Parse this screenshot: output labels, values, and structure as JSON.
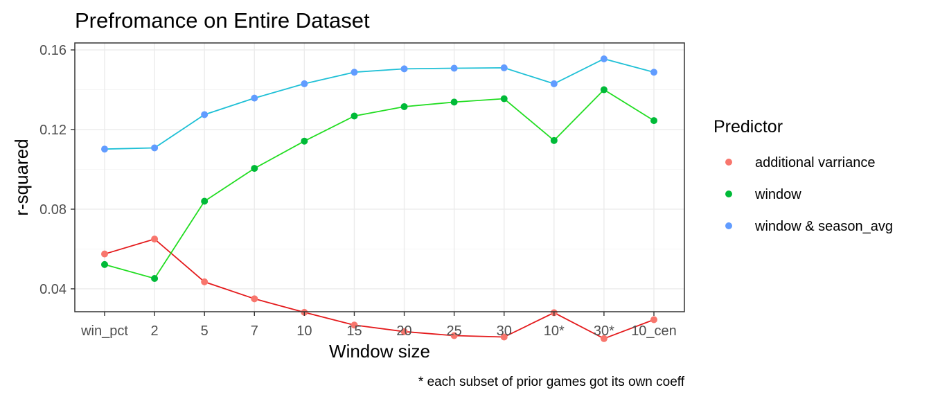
{
  "chart_data": {
    "type": "line",
    "title": "Prefromance on Entire Dataset",
    "xlabel": "Window size",
    "ylabel": "r-squared",
    "categories": [
      "win_pct",
      "2",
      "5",
      "7",
      "10",
      "15",
      "20",
      "25",
      "30",
      "10*",
      "30*",
      "10_cen"
    ],
    "ylim": [
      0.0285,
      0.1635
    ],
    "yticks": [
      0.04,
      0.08,
      0.12,
      0.16
    ],
    "ytick_labels": [
      "0.04",
      "0.08",
      "0.12",
      "0.16"
    ],
    "grid": true,
    "legend_title": "Predictor",
    "legend_position": "right",
    "caption": "* each subset of prior games got its own coeff",
    "series": [
      {
        "name": "additional varriance",
        "point_color": "#F8766D",
        "line_color": "#E41A1C",
        "values": [
          0.0575,
          0.065,
          0.0435,
          0.035,
          0.0282,
          0.0218,
          0.0185,
          0.0165,
          0.0158,
          0.028,
          0.015,
          0.0245
        ]
      },
      {
        "name": "window",
        "point_color": "#00BA38",
        "line_color": "#22DD22",
        "values": [
          0.0522,
          0.0452,
          0.084,
          0.1005,
          0.1142,
          0.1268,
          0.1315,
          0.1338,
          0.1355,
          0.1145,
          0.14,
          0.1245
        ]
      },
      {
        "name": "window & season_avg",
        "point_color": "#619CFF",
        "line_color": "#1FC0D6",
        "values": [
          0.1102,
          0.1108,
          0.1275,
          0.1358,
          0.143,
          0.1488,
          0.1505,
          0.1508,
          0.151,
          0.143,
          0.1555,
          0.1488
        ]
      }
    ]
  }
}
